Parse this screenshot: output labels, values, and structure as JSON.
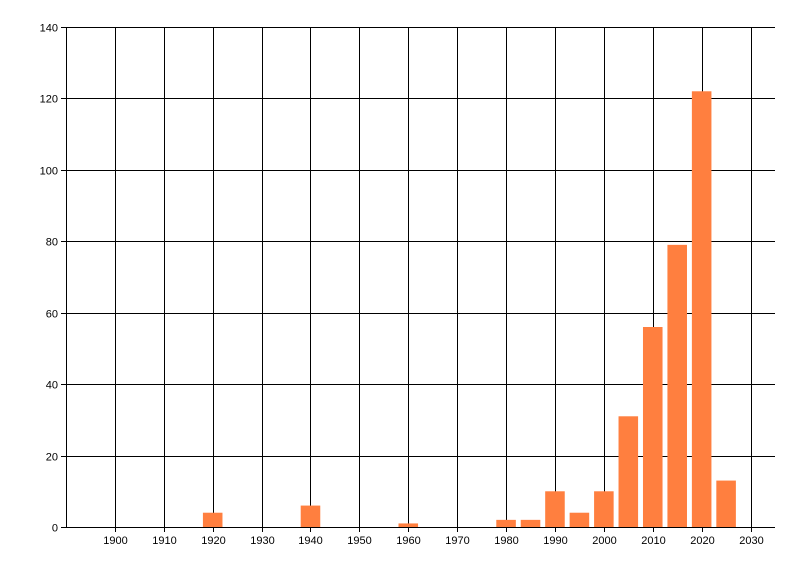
{
  "chart_data": {
    "type": "bar",
    "title": "",
    "xlabel": "",
    "ylabel": "",
    "x": [
      1920,
      1940,
      1960,
      1980,
      1985,
      1990,
      1995,
      2000,
      2005,
      2010,
      2015,
      2020,
      2025
    ],
    "values": [
      4,
      6,
      1,
      2,
      2,
      10,
      4,
      10,
      31,
      56,
      79,
      122,
      13
    ],
    "xlim": [
      1890,
      2035
    ],
    "ylim": [
      0,
      140
    ],
    "xticks": [
      1900,
      1910,
      1920,
      1930,
      1940,
      1950,
      1960,
      1970,
      1980,
      1990,
      2000,
      2010,
      2020,
      2030
    ],
    "yticks": [
      0,
      20,
      40,
      60,
      80,
      100,
      120,
      140
    ],
    "bar_width_years": 4,
    "grid": true,
    "legend": "none",
    "bar_color": "#FF7F3F",
    "grid_color": "#000000"
  }
}
